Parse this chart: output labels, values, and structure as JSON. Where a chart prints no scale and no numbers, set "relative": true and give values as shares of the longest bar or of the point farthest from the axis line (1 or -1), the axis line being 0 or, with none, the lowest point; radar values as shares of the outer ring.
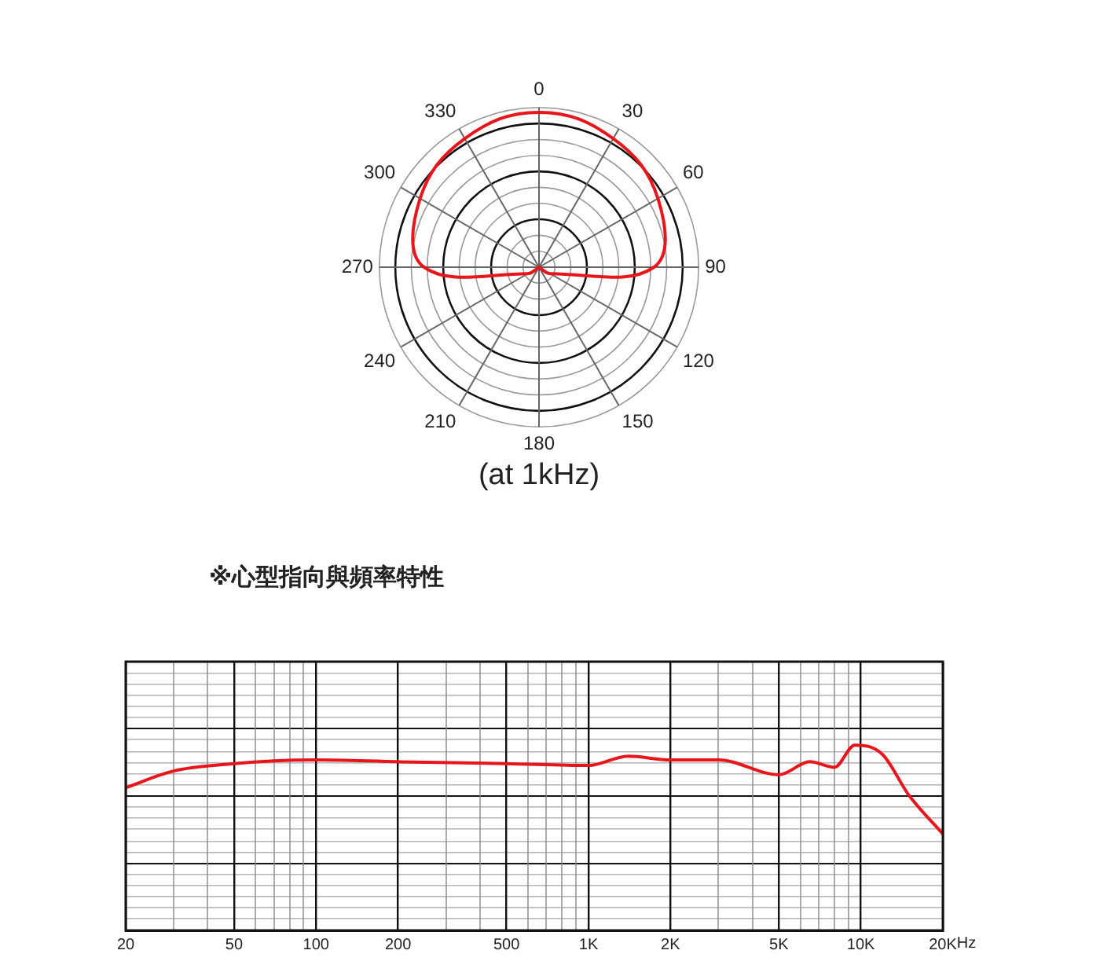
{
  "chart_data": [
    {
      "type": "radar",
      "categories": [
        "0",
        "30",
        "60",
        "90",
        "120",
        "150",
        "180",
        "210",
        "240",
        "270",
        "300",
        "330"
      ],
      "relative": true,
      "grid": true,
      "marker": "none",
      "annotations": [
        "(at 1kHz)"
      ],
      "series": [
        {
          "color": "#e8151b",
          "values": [
            0.97,
            0.93,
            0.86,
            0.72,
            0.08,
            0,
            0,
            0,
            0.08,
            0.72,
            0.86,
            0.93
          ]
        }
      ]
    },
    {
      "type": "line",
      "title": "※心型指向與頻率特性",
      "relative": true,
      "grid": true,
      "marker": "none",
      "log": "x",
      "xlim": [
        20,
        20000
      ],
      "xticks": [
        20,
        {
          "value": 30,
          "label": null
        },
        {
          "value": 40,
          "label": null
        },
        50,
        {
          "value": 60,
          "label": null
        },
        {
          "value": 70,
          "label": null
        },
        {
          "value": 80,
          "label": null
        },
        {
          "value": 90,
          "label": null
        },
        100,
        200,
        {
          "value": 300,
          "label": null
        },
        {
          "value": 400,
          "label": null
        },
        500,
        {
          "value": 600,
          "label": null
        },
        {
          "value": 700,
          "label": null
        },
        {
          "value": 800,
          "label": null
        },
        {
          "value": 900,
          "label": null
        },
        {
          "value": 1000,
          "label": "1K"
        },
        {
          "value": 2000,
          "label": "2K"
        },
        {
          "value": 3000,
          "label": null
        },
        {
          "value": 4000,
          "label": null
        },
        {
          "value": 5000,
          "label": "5K"
        },
        {
          "value": 6000,
          "label": null
        },
        {
          "value": 7000,
          "label": null
        },
        {
          "value": 8000,
          "label": null
        },
        {
          "value": 9000,
          "label": null
        },
        {
          "value": 10000,
          "label": "10K"
        },
        {
          "value": 20000,
          "label": "20K"
        }
      ],
      "xlabel": "Hz",
      "x": [
        20,
        30,
        50,
        70,
        100,
        200,
        500,
        1000,
        1400,
        2000,
        3000,
        5000,
        6500,
        8000,
        9500,
        12000,
        15000,
        20000
      ],
      "series": [
        {
          "color": "#e8151b",
          "values": [
            0.77,
            0.86,
            0.9,
            0.915,
            0.92,
            0.91,
            0.9,
            0.89,
            0.94,
            0.92,
            0.92,
            0.84,
            0.91,
            0.88,
            1,
            0.95,
            0.73,
            0.52
          ]
        }
      ]
    }
  ]
}
